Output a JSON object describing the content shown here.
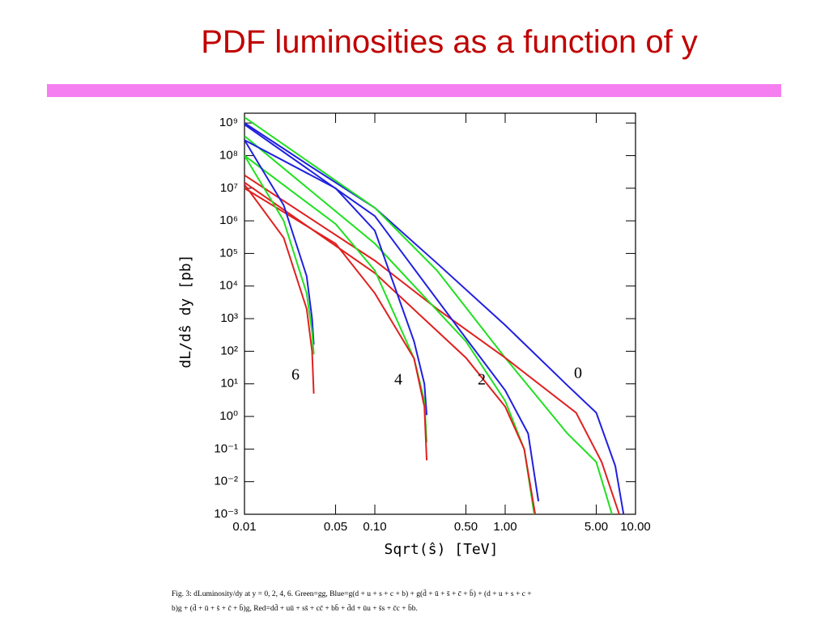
{
  "title": "PDF luminosities as a function of y",
  "chart_data": {
    "type": "line",
    "x_log": true,
    "y_log": true,
    "xlabel": "Sqrt(ŝ) [TeV]",
    "ylabel": "dL/dŝ dy [pb]",
    "xlim": [
      0.01,
      10
    ],
    "ylim": [
      0.001,
      2000000000
    ],
    "xticks": [
      0.01,
      0.05,
      {
        "value": 0.1,
        "label": "0.10"
      },
      {
        "value": 0.5,
        "label": "0.50"
      },
      {
        "value": 1,
        "label": "1.00"
      },
      {
        "value": 5,
        "label": "5.00"
      },
      {
        "value": 10,
        "label": "10.00"
      }
    ],
    "yticks": [
      {
        "value": 1000000000,
        "label": "10⁹"
      },
      {
        "value": 100000000,
        "label": "10⁸"
      },
      {
        "value": 10000000,
        "label": "10⁷"
      },
      {
        "value": 1000000,
        "label": "10⁶"
      },
      {
        "value": 100000,
        "label": "10⁵"
      },
      {
        "value": 10000,
        "label": "10⁴"
      },
      {
        "value": 1000,
        "label": "10³"
      },
      {
        "value": 100,
        "label": "10²"
      },
      {
        "value": 10,
        "label": "10¹"
      },
      {
        "value": 1,
        "label": "10⁰"
      },
      {
        "value": 0.1,
        "label": "10⁻¹"
      },
      {
        "value": 0.01,
        "label": "10⁻²"
      },
      {
        "value": 0.001,
        "label": "10⁻³"
      }
    ],
    "series": [
      {
        "color": "#2020e0",
        "x": [
          0.01,
          0.03,
          0.1,
          0.3,
          1,
          3,
          5,
          7,
          8.1
        ],
        "values": [
          1000000000,
          56000000,
          2500000,
          50000,
          630,
          9,
          1.3,
          0.03,
          0.001
        ]
      },
      {
        "color": "#20e020",
        "x": [
          0.01,
          0.1,
          0.3,
          1,
          3,
          5,
          6.6
        ],
        "values": [
          1500000000,
          2500000,
          30000,
          63,
          0.3,
          0.04,
          0.001
        ]
      },
      {
        "color": "#e02020",
        "x": [
          0.01,
          0.1,
          0.3,
          1,
          3.5,
          5.5,
          7.5
        ],
        "values": [
          25000000,
          60000,
          2000,
          63,
          1.3,
          0.04,
          0.001
        ]
      },
      {
        "color": "#2020e0",
        "x": [
          0.01,
          0.1,
          0.5,
          1,
          1.5,
          1.8
        ],
        "values": [
          900000000,
          1400000,
          250,
          6.3,
          0.3,
          0.0025
        ]
      },
      {
        "color": "#20e020",
        "x": [
          0.01,
          0.1,
          0.5,
          1,
          1.4,
          1.67
        ],
        "values": [
          400000000,
          200000,
          200,
          3,
          0.1,
          0.001
        ]
      },
      {
        "color": "#e02020",
        "x": [
          0.01,
          0.1,
          0.5,
          1,
          1.4,
          1.7
        ],
        "values": [
          15000000,
          25000,
          63,
          2,
          0.1,
          0.001
        ]
      },
      {
        "color": "#2020e0",
        "x": [
          0.01,
          0.05,
          0.1,
          0.2,
          0.24,
          0.25
        ],
        "values": [
          300000000,
          10000000,
          500000,
          200,
          10,
          1.1
        ]
      },
      {
        "color": "#20e020",
        "x": [
          0.01,
          0.05,
          0.1,
          0.2,
          0.24,
          0.25
        ],
        "values": [
          100000000,
          800000,
          30000,
          60,
          3,
          0.16
        ]
      },
      {
        "color": "#e02020",
        "x": [
          0.01,
          0.05,
          0.1,
          0.2,
          0.24,
          0.25
        ],
        "values": [
          10000000,
          200000,
          6000,
          60,
          2,
          0.045
        ]
      },
      {
        "color": "#2020e0",
        "x": [
          0.01,
          0.02,
          0.03,
          0.033,
          0.034
        ],
        "values": [
          300000000,
          3000000,
          20000,
          1000,
          160
        ]
      },
      {
        "color": "#20e020",
        "x": [
          0.01,
          0.02,
          0.03,
          0.033,
          0.034
        ],
        "values": [
          100000000,
          1000000,
          6000,
          400,
          80
        ]
      },
      {
        "color": "#e02020",
        "x": [
          0.01,
          0.02,
          0.03,
          0.033,
          0.034
        ],
        "values": [
          13000000,
          300000,
          2000,
          100,
          5
        ]
      }
    ],
    "annotations": [
      "6",
      "4",
      "2",
      "0"
    ]
  },
  "caption": [
    "Fig. 3: dLuminosity/dy at y = 0, 2, 4, 6. Green=gg, Blue=g(d + u + s + c + b) + g(d̄ + ū + s̄ + c̄ + b̄) + (d + u + s + c +",
    "b)g + (d̄ + ū + s̄ + c̄ + b̄)g, Red=dd̄ + uū + ss̄ + cc̄ + bb̄ + d̄d + ūu + s̄s + c̄c + b̄b."
  ]
}
